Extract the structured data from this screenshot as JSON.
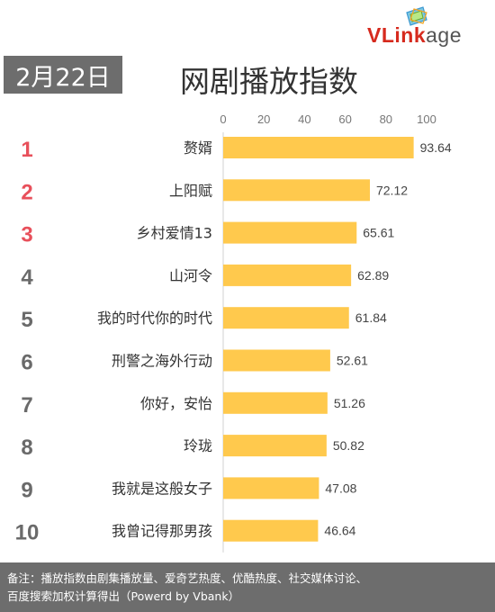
{
  "header": {
    "date_badge": "2月22日",
    "title": "网剧播放指数"
  },
  "logo": {
    "text_red": "VLink",
    "text_gray": "age"
  },
  "colors": {
    "bar": "#ffc94d",
    "rank_top3": "#e8505b",
    "rank_other": "#6a6a6a",
    "badge_bg": "#6d6d6d"
  },
  "chart_data": {
    "type": "bar",
    "orientation": "horizontal",
    "title": "网剧播放指数",
    "ranks": [
      "1",
      "2",
      "3",
      "4",
      "5",
      "6",
      "7",
      "8",
      "9",
      "10"
    ],
    "categories": [
      "赘婿",
      "上阳赋",
      "乡村爱情13",
      "山河令",
      "我的时代你的时代",
      "刑警之海外行动",
      "你好，安怡",
      "玲珑",
      "我就是这般女子",
      "我曾记得那男孩"
    ],
    "values": [
      93.64,
      72.12,
      65.61,
      62.89,
      61.84,
      52.61,
      51.26,
      50.82,
      47.08,
      46.64
    ],
    "value_labels": [
      "93.64",
      "72.12",
      "65.61",
      "62.89",
      "61.84",
      "52.61",
      "51.26",
      "50.82",
      "47.08",
      "46.64"
    ],
    "xlim": [
      0,
      100
    ],
    "xticks": [
      "0",
      "20",
      "40",
      "60",
      "80",
      "100"
    ],
    "xaxis_position": "top",
    "grid": false,
    "legend": "none"
  },
  "footer": {
    "line1": "备注：播放指数由剧集播放量、爱奇艺热度、优酷热度、社交媒体讨论、",
    "line2": "百度搜索加权计算得出（Powerd by Vbank）"
  }
}
